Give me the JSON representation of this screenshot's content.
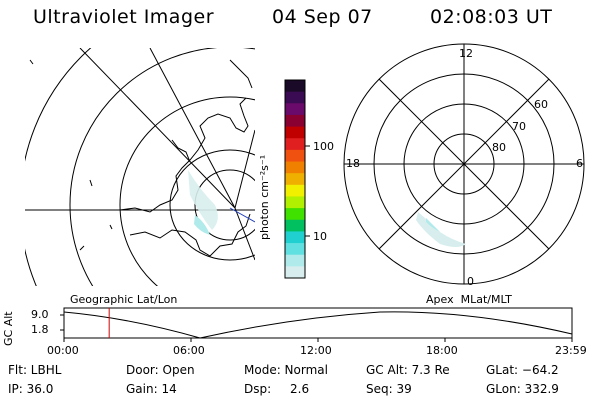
{
  "header": {
    "instrument": "Ultraviolet Imager",
    "date": "04 Sep 07",
    "time": "02:08:03 UT"
  },
  "colorbar": {
    "unit_label": "photon cm⁻²s⁻¹",
    "ticks": [
      "100",
      "10"
    ],
    "colors": [
      "#1a0a28",
      "#3a0a52",
      "#6a0a6a",
      "#8a0030",
      "#c00000",
      "#e02020",
      "#f05010",
      "#f08000",
      "#f0b000",
      "#f0f000",
      "#b0f000",
      "#40e000",
      "#00c060",
      "#20d0d0",
      "#60e0e0",
      "#b0eaea",
      "#d8eeee"
    ]
  },
  "geo_panel": {
    "caption": "Geographic Lat/Lon"
  },
  "polar_panel": {
    "caption": "Apex  MLat/MLT",
    "mlt_labels": {
      "top": "12",
      "right": "6",
      "bottom": "0",
      "left": "18"
    },
    "lat_labels": [
      "60",
      "70",
      "80"
    ]
  },
  "altitude_plot": {
    "ylabel": "GC Alt",
    "yticks": [
      "9.0",
      "1.8"
    ],
    "xticks": [
      "00:00",
      "06:00",
      "12:00",
      "18:00",
      "23:59"
    ],
    "current_time_marker_hours": 2.134
  },
  "info": {
    "flt": "Flt: LBHL",
    "door": "Door: Open",
    "mode": "Mode: Normal",
    "gc_alt": "GC Alt: 7.3 Re",
    "glat": "GLat: −64.2",
    "ip": "IP: 36.0",
    "gain": "Gain: 14",
    "dsp_label": "Dsp:",
    "dsp_value": "2.6",
    "seq": "Seq: 39",
    "glon": "GLon: 332.9"
  }
}
